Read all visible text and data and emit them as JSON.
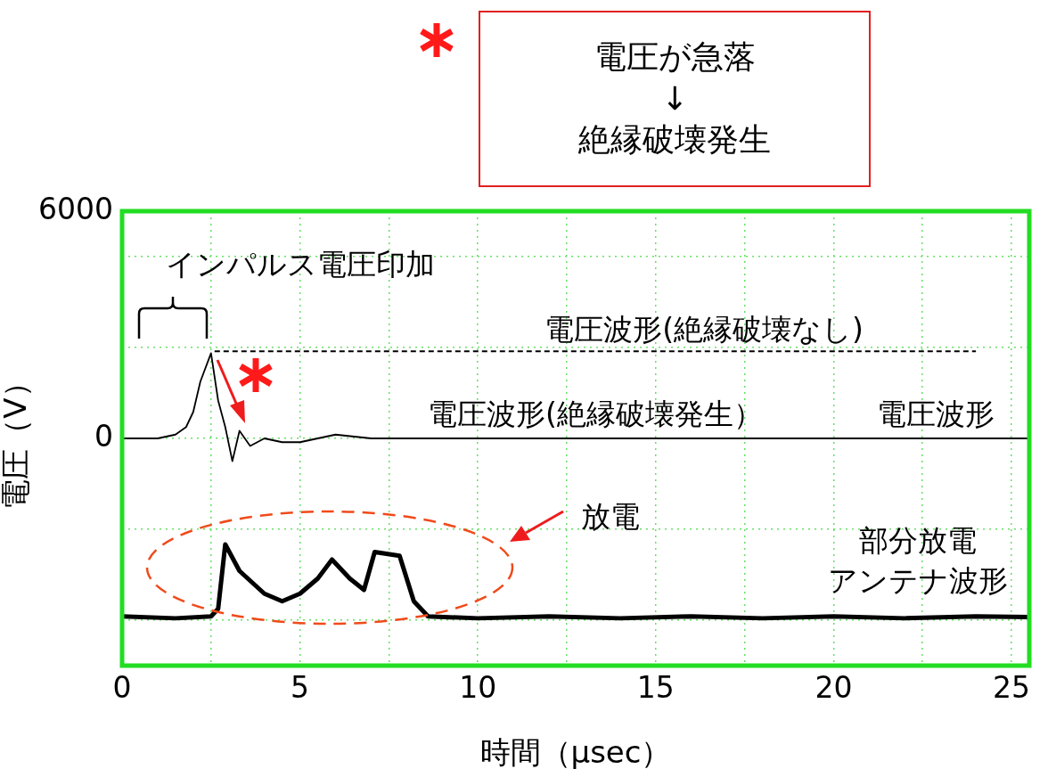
{
  "chart_data": {
    "type": "line",
    "xlabel": "時間（μsec）",
    "ylabel": "電圧（V）",
    "xlim": [
      0,
      25.5
    ],
    "ylim": [
      -6000,
      6000
    ],
    "xticks": [
      0,
      {
        "value": 2.5,
        "label": null
      },
      5,
      {
        "value": 7.5,
        "label": null
      },
      10,
      {
        "value": 12.5,
        "label": null
      },
      15,
      {
        "value": 17.5,
        "label": null
      },
      20,
      {
        "value": 22.5,
        "label": null
      },
      25
    ],
    "yticks": [
      {
        "value": -4800,
        "label": null
      },
      {
        "value": -2400,
        "label": null
      },
      0,
      {
        "value": 2400,
        "label": null
      },
      {
        "value": 4800,
        "label": null
      },
      6000
    ],
    "grid": true,
    "legend": false,
    "marker": "none",
    "series": [
      {
        "color": "#000000",
        "line_style": "solid",
        "x": [
          0,
          1.0,
          1.5,
          1.8,
          2.0,
          2.2,
          2.5,
          2.7,
          2.9,
          3.1,
          3.3,
          3.6,
          4.0,
          4.5,
          5.0,
          5.5,
          6.0,
          7.0,
          8.0,
          10.0,
          25.5
        ],
        "values": [
          0,
          0,
          100,
          300,
          700,
          1500,
          2250,
          1000,
          300,
          -600,
          200,
          -200,
          0,
          -100,
          -100,
          0,
          100,
          0,
          0,
          0,
          0
        ]
      },
      {
        "color": "#000000",
        "line_style": "dashed",
        "x": [
          2.6,
          24.0
        ],
        "values": [
          2300,
          2300
        ]
      },
      {
        "color": "#000000",
        "line_style": "solid",
        "x": [
          0,
          1.5,
          2.5,
          2.7,
          2.9,
          3.3,
          4.0,
          4.5,
          5.0,
          5.5,
          5.9,
          6.4,
          6.8,
          7.1,
          7.8,
          8.2,
          8.6,
          10,
          12,
          14,
          16,
          18,
          20,
          22,
          24,
          25.5
        ],
        "values": [
          -4700,
          -4750,
          -4700,
          -4500,
          -2800,
          -3500,
          -4100,
          -4300,
          -4100,
          -3700,
          -3200,
          -3700,
          -4000,
          -3000,
          -3100,
          -4300,
          -4700,
          -4750,
          -4700,
          -4750,
          -4700,
          -4750,
          -4700,
          -4750,
          -4700,
          -4720
        ]
      }
    ],
    "annotations": [
      "電圧が急落\n↓\n絶縁破壊発生",
      "インパルス電圧印加",
      "電圧波形(絶縁破壊なし)",
      "電圧波形(絶縁破壊発生）",
      "電圧波形",
      "放電",
      "部分放電アンテナ波形"
    ]
  }
}
